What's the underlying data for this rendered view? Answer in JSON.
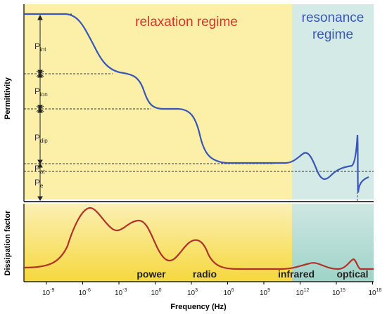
{
  "regimes": {
    "relaxation": "relaxation regime",
    "resonance_line1": "resonance",
    "resonance_line2": "regime"
  },
  "axes": {
    "y_top": "Permittivity",
    "y_bottom": "Dissipation factor",
    "x": "Frequency (Hz)"
  },
  "polarizations": [
    {
      "base": "P",
      "sub": "int"
    },
    {
      "base": "P",
      "sub": "ion"
    },
    {
      "base": "P",
      "sub": "dip"
    },
    {
      "base": "P",
      "sub": "at"
    },
    {
      "base": "P",
      "sub": "e"
    }
  ],
  "bands": [
    "power",
    "radio",
    "infrared",
    "optical"
  ],
  "x_ticks": [
    {
      "base": "10",
      "exp": "-9"
    },
    {
      "base": "10",
      "exp": "-6"
    },
    {
      "base": "10",
      "exp": "-3"
    },
    {
      "base": "10",
      "exp": "0"
    },
    {
      "base": "10",
      "exp": "3"
    },
    {
      "base": "10",
      "exp": "6"
    },
    {
      "base": "10",
      "exp": "9"
    },
    {
      "base": "10",
      "exp": "12"
    },
    {
      "base": "10",
      "exp": "15"
    },
    {
      "base": "10",
      "exp": "18"
    }
  ],
  "colors": {
    "relaxation_fill": "#fcf0a8",
    "resonance_fill": "#cfe8e2",
    "permittivity_curve": "#3a56b8",
    "dissipation_curve": "#b0322a",
    "relaxation_title": "#e0312b",
    "resonance_title": "#3a56b8"
  }
}
